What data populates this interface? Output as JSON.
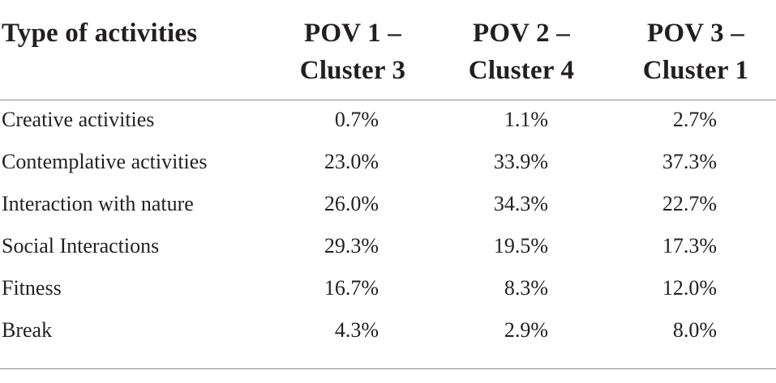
{
  "table": {
    "headers": [
      [
        "Type of activities"
      ],
      [
        "POV 1 –",
        "Cluster 3"
      ],
      [
        "POV 2 –",
        "Cluster 4"
      ],
      [
        "POV 3 –",
        "Cluster 1"
      ]
    ],
    "rows": [
      [
        "Creative activities",
        "0.7%",
        "1.1%",
        "2.7%"
      ],
      [
        "Contemplative activities",
        "23.0%",
        "33.9%",
        "37.3%"
      ],
      [
        "Interaction with nature",
        "26.0%",
        "34.3%",
        "22.7%"
      ],
      [
        "Social Interactions",
        "29.3%",
        "19.5%",
        "17.3%"
      ],
      [
        "Fitness",
        "16.7%",
        "8.3%",
        "12.0%"
      ],
      [
        "Break",
        "4.3%",
        "2.9%",
        "8.0%"
      ]
    ]
  },
  "colors": {
    "text": "#231f20",
    "rule": "#8a8a8a",
    "background": "#ffffff"
  }
}
